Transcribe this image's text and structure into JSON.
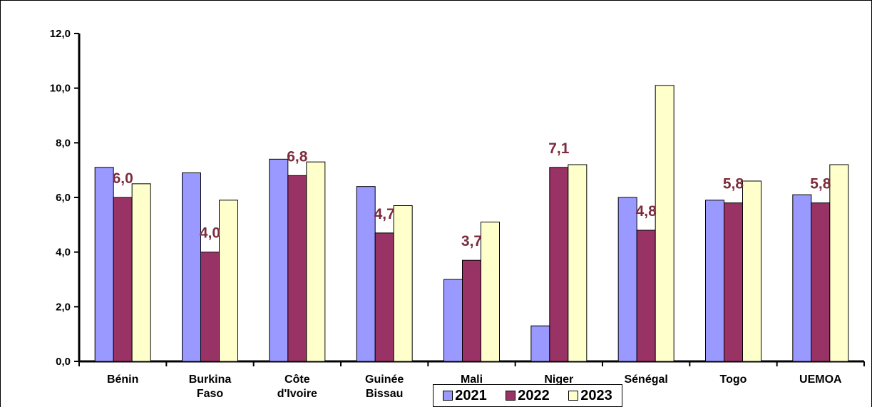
{
  "chart_data": {
    "type": "bar",
    "categories": [
      [
        "Bénin"
      ],
      [
        "Burkina",
        "Faso"
      ],
      [
        "Côte",
        "d'Ivoire"
      ],
      [
        "Guinée",
        "Bissau"
      ],
      [
        "Mali"
      ],
      [
        "Niger"
      ],
      [
        "Sénégal"
      ],
      [
        "Togo"
      ],
      [
        "UEMOA"
      ]
    ],
    "series": [
      {
        "name": "2021",
        "color": "#9999ff",
        "values": [
          7.1,
          6.9,
          7.4,
          6.4,
          3.0,
          1.3,
          6.0,
          5.9,
          6.1
        ]
      },
      {
        "name": "2022",
        "color": "#993366",
        "values": [
          6.0,
          4.0,
          6.8,
          4.7,
          3.7,
          7.1,
          4.8,
          5.8,
          5.8
        ]
      },
      {
        "name": "2023",
        "color": "#ffffcc",
        "values": [
          6.5,
          5.9,
          7.3,
          5.7,
          5.1,
          7.2,
          10.1,
          6.6,
          7.2
        ]
      }
    ],
    "data_labels": [
      "6,0",
      "4,0",
      "6,8",
      "4,7",
      "3,7",
      "7,1",
      "4,8",
      "5,8",
      "5,8"
    ],
    "yticks": [
      "0,0",
      "2,0",
      "4,0",
      "6,0",
      "8,0",
      "10,0",
      "12,0"
    ],
    "ylim": [
      0,
      12
    ],
    "legend_position": "bottom"
  }
}
